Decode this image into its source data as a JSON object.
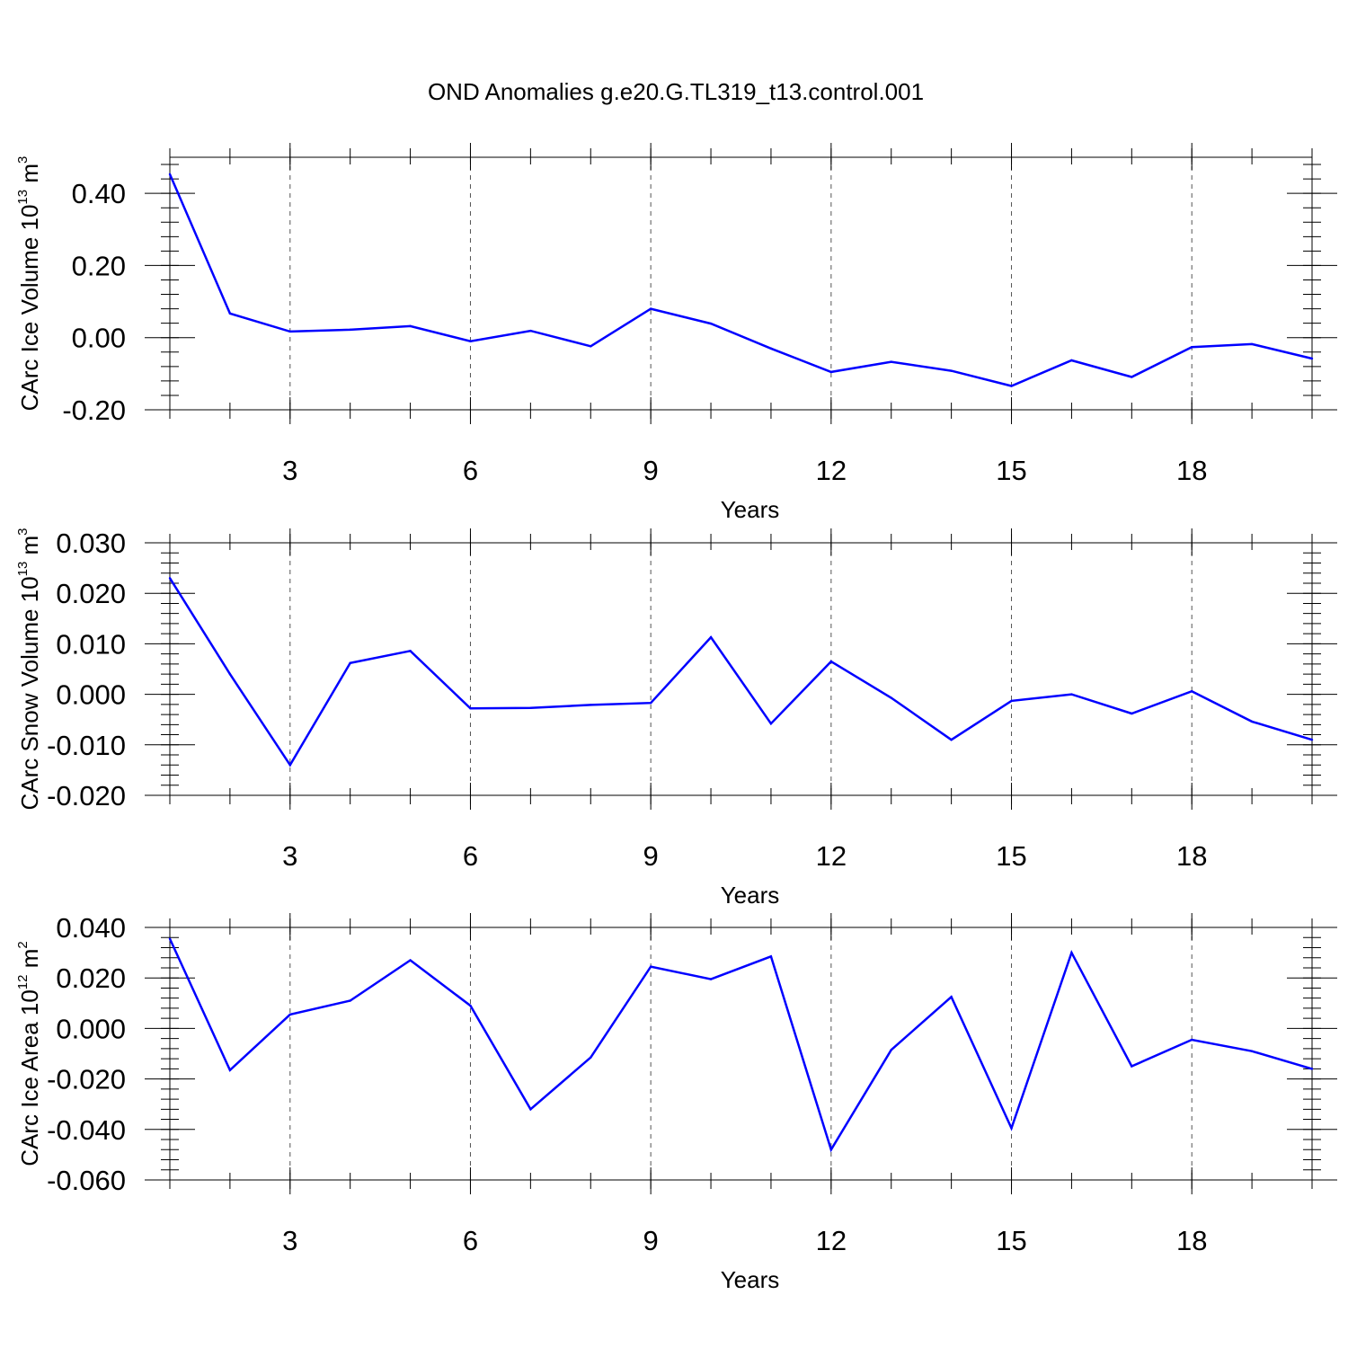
{
  "figure": {
    "title": "OND Anomalies g.e20.G.TL319_t13.control.001"
  },
  "chart_data": [
    {
      "type": "line",
      "ylabel": {
        "text": "CArc Ice Volume 10",
        "sup": "13",
        "unit": " m",
        "unit_sup": "3"
      },
      "xlabel": "Years",
      "xlim": [
        1,
        20
      ],
      "ylim": [
        -0.2,
        0.5
      ],
      "xticks": [
        3,
        6,
        9,
        12,
        15,
        18
      ],
      "yticks": [
        -0.2,
        0.0,
        0.2,
        0.4
      ],
      "ytick_labels": [
        "-0.20",
        "0.00",
        "0.20",
        "0.40"
      ],
      "grid_x": true,
      "line_color": "#0000ff",
      "x": [
        1,
        2,
        3,
        4,
        5,
        6,
        7,
        8,
        9,
        10,
        11,
        12,
        13,
        14,
        15,
        16,
        17,
        18,
        19,
        20
      ],
      "y": [
        0.453,
        0.067,
        0.017,
        0.022,
        0.032,
        -0.01,
        0.019,
        -0.024,
        0.08,
        0.039,
        -0.03,
        -0.095,
        -0.067,
        -0.092,
        -0.134,
        -0.063,
        -0.109,
        -0.026,
        -0.018,
        -0.058
      ]
    },
    {
      "type": "line",
      "ylabel": {
        "text": "CArc Snow Volume 10",
        "sup": "13",
        "unit": " m",
        "unit_sup": "3"
      },
      "xlabel": "Years",
      "xlim": [
        1,
        20
      ],
      "ylim": [
        -0.02,
        0.03
      ],
      "xticks": [
        3,
        6,
        9,
        12,
        15,
        18
      ],
      "yticks": [
        -0.02,
        -0.01,
        0.0,
        0.01,
        0.02,
        0.03
      ],
      "ytick_labels": [
        "-0.020",
        "-0.010",
        "0.000",
        "0.010",
        "0.020",
        "0.030"
      ],
      "grid_x": true,
      "line_color": "#0000ff",
      "x": [
        1,
        2,
        3,
        4,
        5,
        6,
        7,
        8,
        9,
        10,
        11,
        12,
        13,
        14,
        15,
        16,
        17,
        18,
        19,
        20
      ],
      "y": [
        0.023,
        0.004,
        -0.014,
        0.0062,
        0.0086,
        -0.0028,
        -0.0027,
        -0.0021,
        -0.0017,
        0.0113,
        -0.0058,
        0.0065,
        -0.0007,
        -0.009,
        -0.0013,
        0.0,
        -0.0038,
        0.0006,
        -0.0054,
        -0.009
      ]
    },
    {
      "type": "line",
      "ylabel": {
        "text": "CArc Ice Area 10",
        "sup": "12",
        "unit": " m",
        "unit_sup": "2"
      },
      "xlabel": "Years",
      "xlim": [
        1,
        20
      ],
      "ylim": [
        -0.06,
        0.04
      ],
      "xticks": [
        3,
        6,
        9,
        12,
        15,
        18
      ],
      "yticks": [
        -0.06,
        -0.04,
        -0.02,
        0.0,
        0.02,
        0.04
      ],
      "ytick_labels": [
        "-0.060",
        "-0.040",
        "-0.020",
        "0.000",
        "0.020",
        "0.040"
      ],
      "grid_x": true,
      "line_color": "#0000ff",
      "x": [
        1,
        2,
        3,
        4,
        5,
        6,
        7,
        8,
        9,
        10,
        11,
        12,
        13,
        14,
        15,
        16,
        17,
        18,
        19,
        20
      ],
      "y": [
        0.0355,
        -0.0165,
        0.0055,
        0.011,
        0.027,
        0.009,
        -0.032,
        -0.0115,
        0.0245,
        0.0195,
        0.0285,
        -0.048,
        -0.0085,
        0.0125,
        -0.0395,
        0.03,
        -0.015,
        -0.0045,
        -0.009,
        -0.016
      ]
    }
  ]
}
